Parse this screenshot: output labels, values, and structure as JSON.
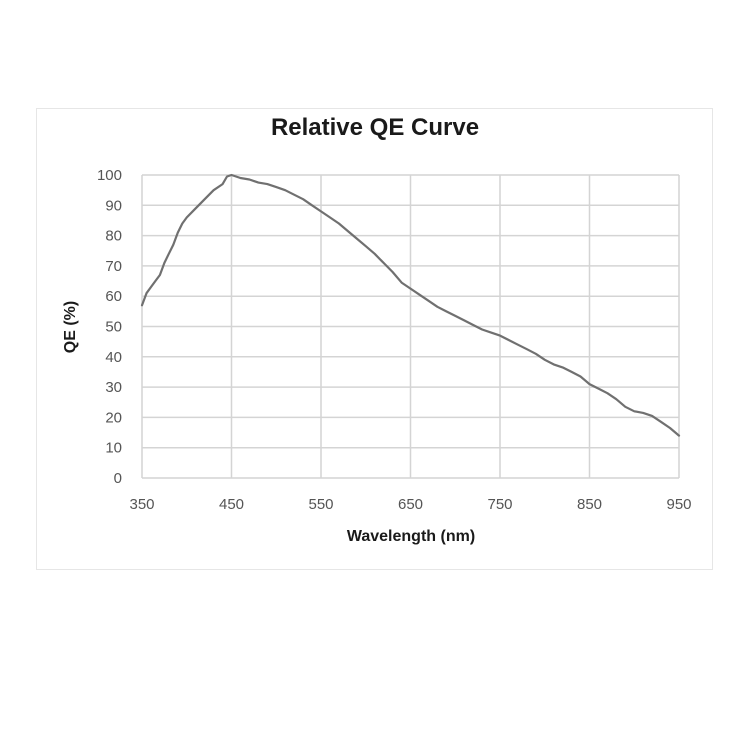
{
  "chart_data": {
    "type": "line",
    "title": "Relative QE Curve",
    "xlabel": "Wavelength (nm)",
    "ylabel": "QE (%)",
    "xlim": [
      350,
      950
    ],
    "ylim": [
      0,
      100
    ],
    "xticks": [
      350,
      450,
      550,
      650,
      750,
      850,
      950
    ],
    "yticks": [
      0,
      10,
      20,
      30,
      40,
      50,
      60,
      70,
      80,
      90,
      100
    ],
    "grid": true,
    "line_color": "#707070",
    "series": [
      {
        "x": [
          350,
          355,
          360,
          365,
          370,
          375,
          380,
          385,
          390,
          395,
          400,
          410,
          420,
          430,
          440,
          445,
          450,
          455,
          460,
          470,
          480,
          490,
          500,
          510,
          520,
          530,
          540,
          550,
          560,
          570,
          580,
          590,
          600,
          610,
          620,
          630,
          640,
          650,
          660,
          670,
          680,
          690,
          700,
          710,
          720,
          730,
          740,
          750,
          760,
          770,
          780,
          790,
          800,
          810,
          820,
          830,
          840,
          850,
          860,
          870,
          880,
          890,
          900,
          910,
          920,
          930,
          940,
          950
        ],
        "y": [
          57,
          61,
          63,
          65,
          67,
          71,
          74,
          77,
          81,
          84,
          86,
          89,
          92,
          95,
          97,
          99.5,
          100,
          99.5,
          99,
          98.5,
          97.5,
          97,
          96,
          95,
          93.5,
          92,
          90,
          88,
          86,
          84,
          81.5,
          79,
          76.5,
          74,
          71,
          68,
          64.5,
          62.5,
          60.5,
          58.5,
          56.5,
          55,
          53.5,
          52,
          50.5,
          49,
          48,
          47,
          45.5,
          44,
          42.5,
          41,
          39,
          37.5,
          36.5,
          35,
          33.5,
          31,
          29.5,
          28,
          26,
          23.5,
          22,
          21.5,
          20.5,
          18.5,
          16.5,
          14
        ]
      }
    ]
  }
}
